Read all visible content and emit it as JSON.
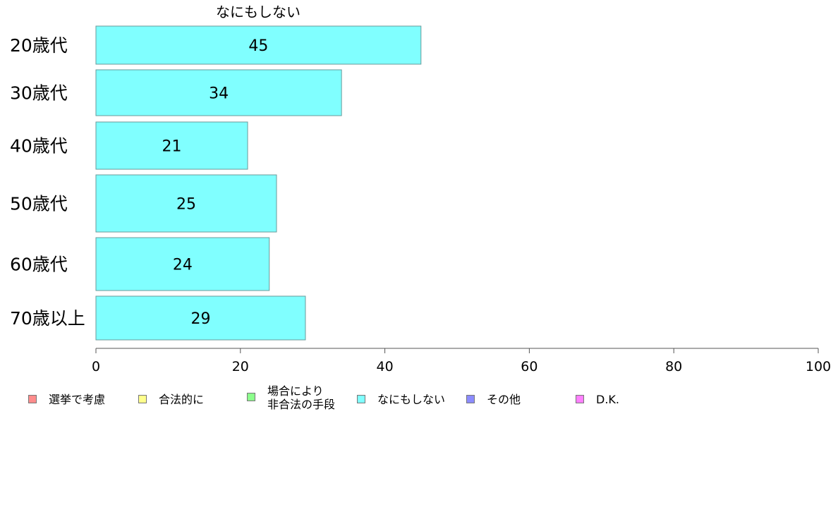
{
  "chart_data": {
    "type": "bar",
    "orientation": "horizontal",
    "title": "なにもしない",
    "categories": [
      "20歳代",
      "30歳代",
      "40歳代",
      "50歳代",
      "60歳代",
      "70歳以上"
    ],
    "series": [
      {
        "name": "なにもしない",
        "values": [
          45,
          34,
          21,
          25,
          24,
          29
        ],
        "color": "#80ffff"
      }
    ],
    "xlim": [
      0,
      100
    ],
    "xticks": [
      0,
      20,
      40,
      60,
      80,
      100
    ],
    "grid": false,
    "legend_position": "bottom",
    "legend": [
      {
        "label": "選挙で考慮",
        "color": "#ff8c8c"
      },
      {
        "label": "合法的に",
        "color": "#ffff8c"
      },
      {
        "label": "場合により\n非合法の手段",
        "color": "#8cff8c"
      },
      {
        "label": "なにもしない",
        "color": "#80ffff"
      },
      {
        "label": "その他",
        "color": "#8c8cff"
      },
      {
        "label": "D.K.",
        "color": "#ff80ff"
      }
    ]
  }
}
